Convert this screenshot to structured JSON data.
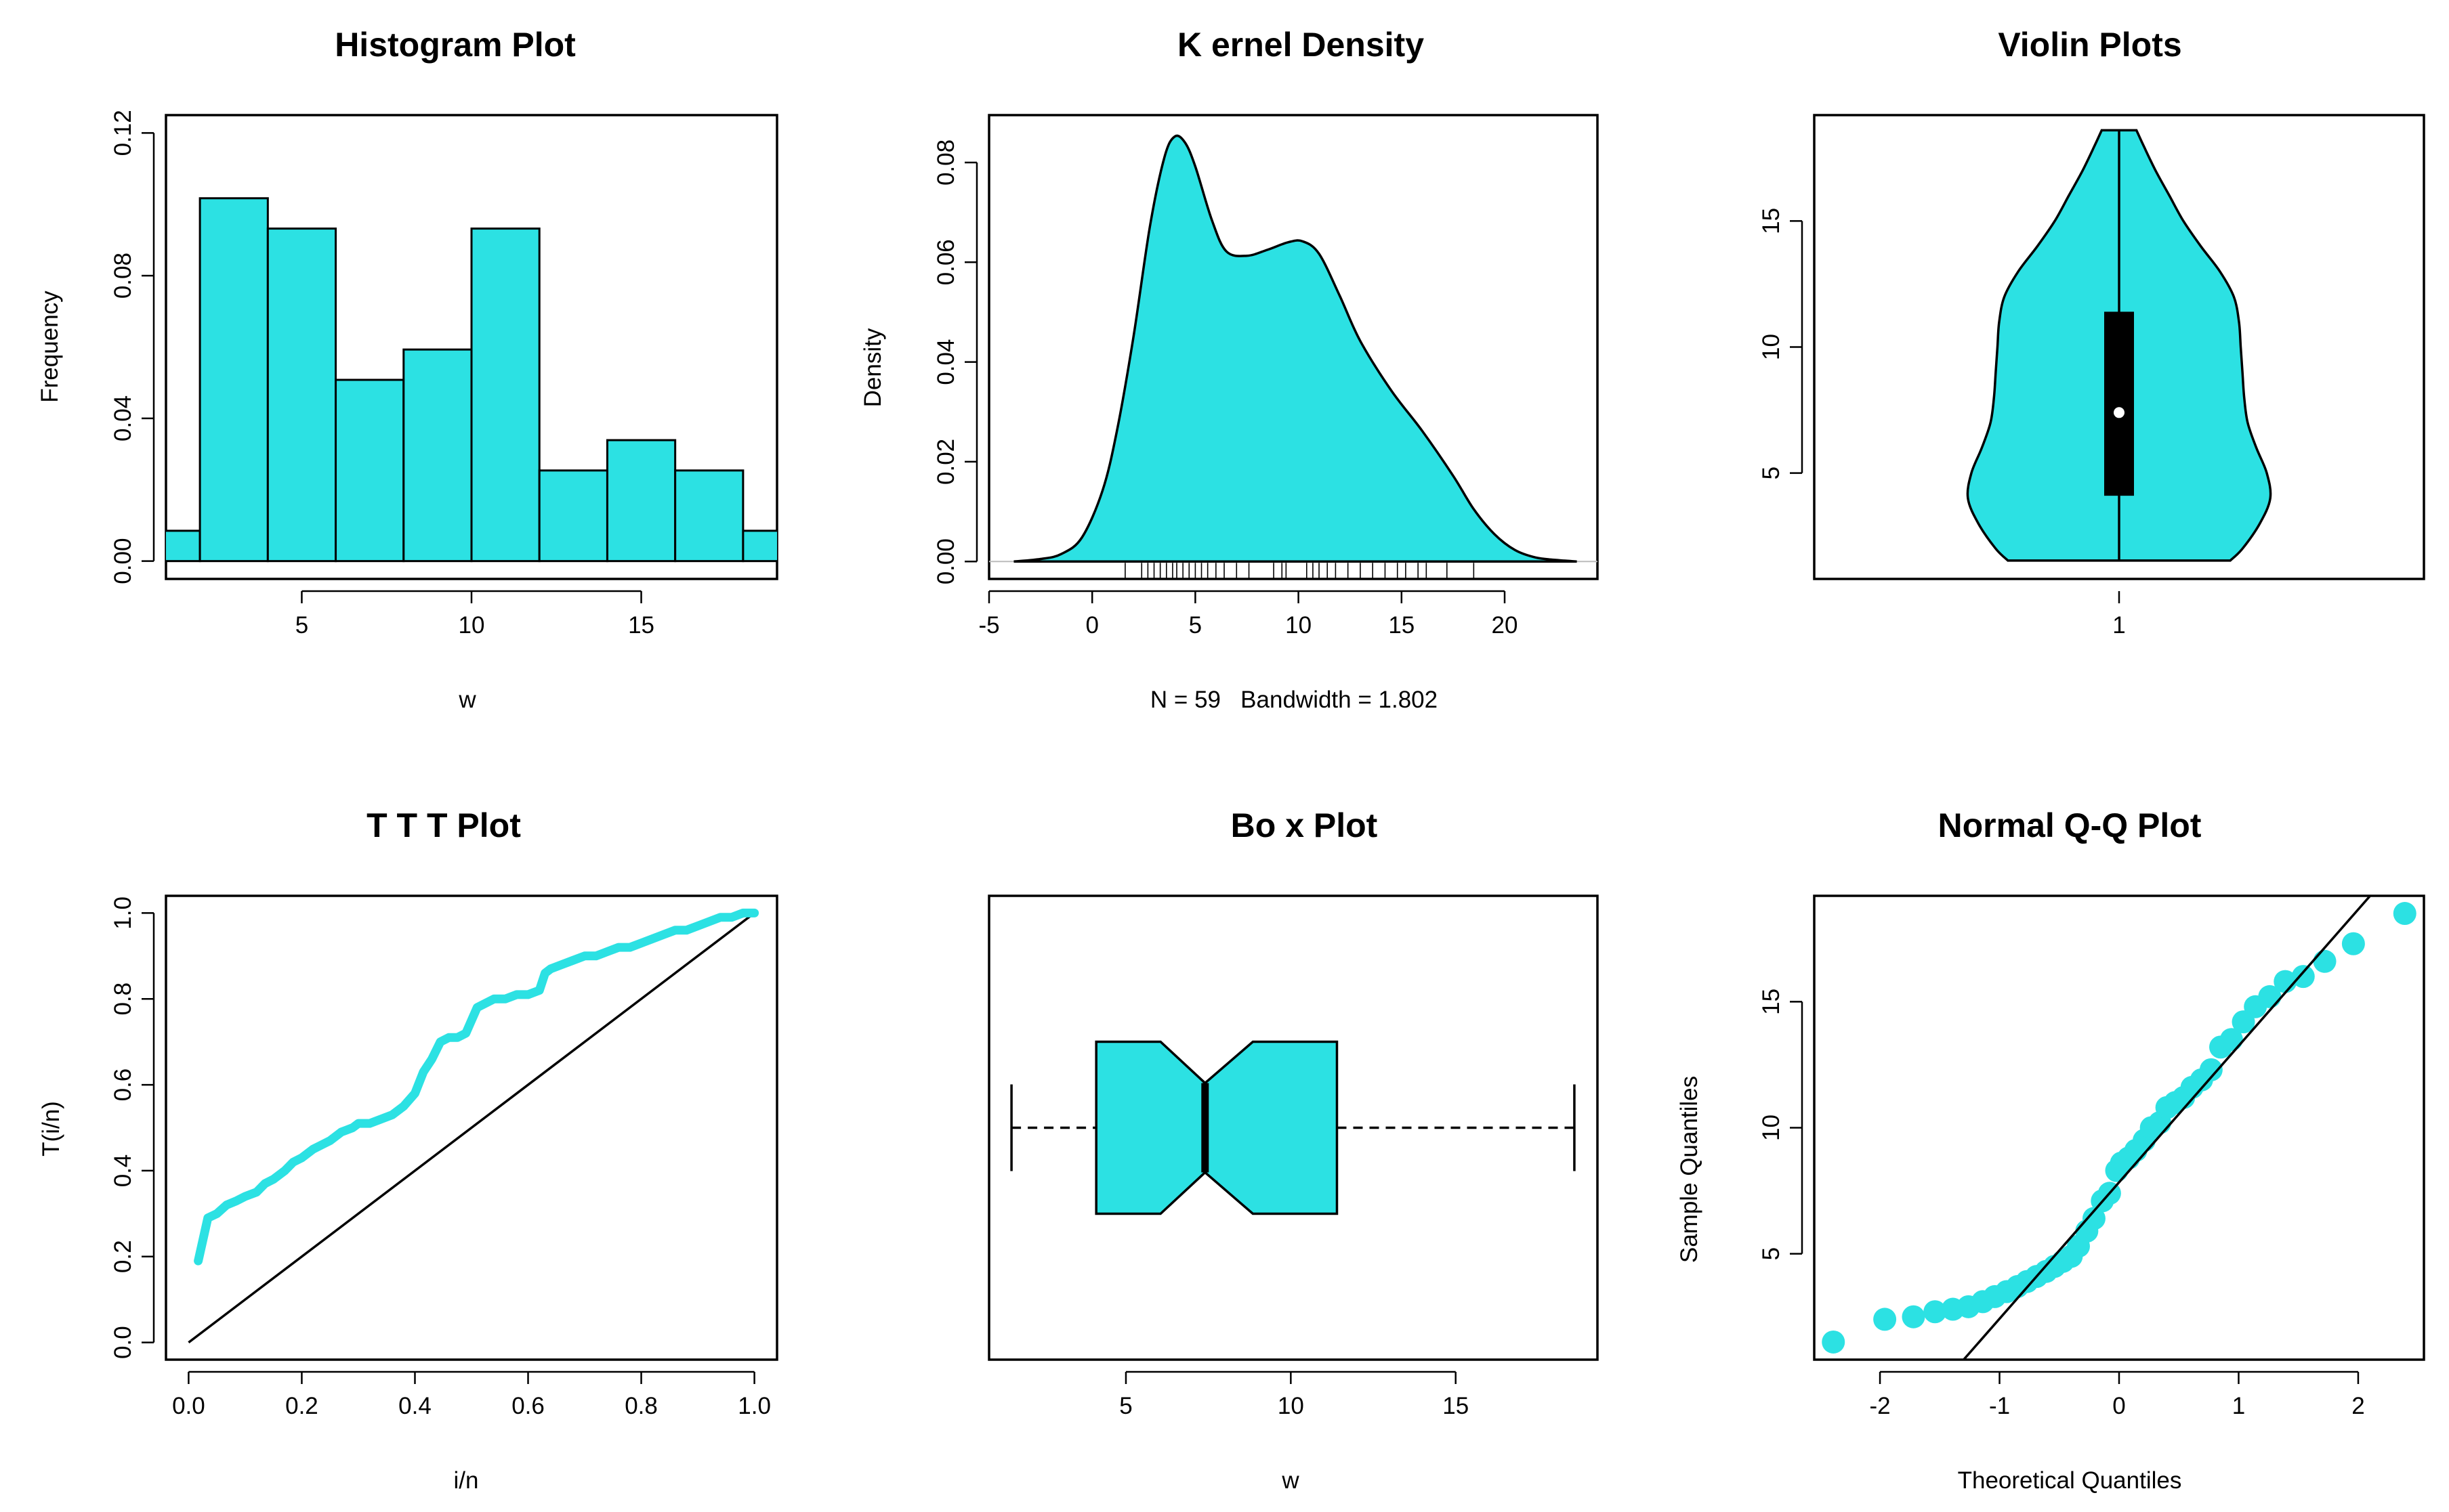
{
  "colors": {
    "fill": "#2ce1e3",
    "line": "#000000",
    "qq_point": "#2ce1e3"
  },
  "chart_data": [
    {
      "id": "hist",
      "type": "bar",
      "title": "Histogram Plot",
      "xlabel": "w",
      "ylabel": "Frequency",
      "xlim": [
        1.0,
        19.0
      ],
      "ylim": [
        -0.005,
        0.125
      ],
      "xticks": [
        5,
        10,
        15
      ],
      "yticks": [
        0.0,
        0.04,
        0.08,
        0.12
      ],
      "ytick_labels": [
        "0.00",
        "0.04",
        "0.08",
        "0.12"
      ],
      "bins": [
        [
          0,
          2,
          0.0085
        ],
        [
          2,
          4,
          0.1017
        ],
        [
          4,
          6,
          0.0932
        ],
        [
          6,
          8,
          0.0508
        ],
        [
          8,
          10,
          0.0593
        ],
        [
          10,
          12,
          0.0932
        ],
        [
          12,
          14,
          0.0254
        ],
        [
          14,
          16,
          0.0339
        ],
        [
          16,
          18,
          0.0254
        ],
        [
          18,
          20,
          0.0085
        ]
      ]
    },
    {
      "id": "kde",
      "type": "area",
      "title": "K ernel Density",
      "xlabel": "N = 59   Bandwidth = 1.802",
      "ylabel": "Density",
      "xlim": [
        -5,
        24.5
      ],
      "ylim": [
        -0.0035,
        0.0895
      ],
      "xticks": [
        -5,
        0,
        5,
        10,
        15,
        20
      ],
      "yticks": [
        0.0,
        0.02,
        0.04,
        0.06,
        0.08
      ],
      "ytick_labels": [
        "0.00",
        "0.02",
        "0.04",
        "0.06",
        "0.08"
      ],
      "x": [
        -3.8,
        -2.5,
        -1.5,
        -0.5,
        0.5,
        1.2,
        2.0,
        2.8,
        3.5,
        4.0,
        4.5,
        5.0,
        5.8,
        6.5,
        7.5,
        8.5,
        9.5,
        10.2,
        11.0,
        12.0,
        13.0,
        14.5,
        16.0,
        17.5,
        18.5,
        19.5,
        20.5,
        21.5,
        22.5,
        23.5
      ],
      "y": [
        0.0,
        0.0005,
        0.0015,
        0.0048,
        0.0142,
        0.0262,
        0.045,
        0.0672,
        0.081,
        0.0852,
        0.084,
        0.0792,
        0.0685,
        0.0622,
        0.0613,
        0.0625,
        0.064,
        0.0642,
        0.0617,
        0.0533,
        0.0442,
        0.0343,
        0.0262,
        0.0172,
        0.0105,
        0.0055,
        0.0023,
        0.0008,
        0.0003,
        0.0
      ],
      "rug": [
        1.6,
        2.4,
        2.7,
        3.0,
        3.3,
        3.6,
        3.9,
        4.1,
        4.4,
        4.7,
        5.0,
        5.3,
        5.6,
        6.0,
        6.4,
        7.0,
        7.6,
        8.8,
        9.2,
        9.4,
        10.4,
        10.7,
        11.0,
        11.4,
        11.8,
        12.4,
        13.0,
        13.6,
        14.2,
        14.8,
        15.2,
        15.8,
        16.2,
        17.2,
        18.5
      ]
    },
    {
      "id": "violin",
      "type": "violin",
      "title": "Violin Plots",
      "xlim": [
        0.5,
        1.5
      ],
      "ylim": [
        0.8,
        19.2
      ],
      "xticks": [
        1
      ],
      "yticks": [
        5,
        10,
        15
      ],
      "profile": [
        [
          1.53,
          0.64
        ],
        [
          2.0,
          0.71
        ],
        [
          3.0,
          0.81
        ],
        [
          4.0,
          0.87
        ],
        [
          5.0,
          0.85
        ],
        [
          6.0,
          0.79
        ],
        [
          7.0,
          0.74
        ],
        [
          8.0,
          0.72
        ],
        [
          9.0,
          0.71
        ],
        [
          10.0,
          0.7
        ],
        [
          11.0,
          0.69
        ],
        [
          12.0,
          0.66
        ],
        [
          13.0,
          0.58
        ],
        [
          14.0,
          0.47
        ],
        [
          15.0,
          0.37
        ],
        [
          16.0,
          0.29
        ],
        [
          17.0,
          0.21
        ],
        [
          18.0,
          0.14
        ],
        [
          18.6,
          0.1
        ]
      ],
      "box": {
        "q1": 4.1,
        "q3": 11.4,
        "median": 7.4,
        "min": 1.53,
        "max": 18.6
      }
    },
    {
      "id": "ttt",
      "type": "line",
      "title": "T T T Plot",
      "xlabel": "i/n",
      "ylabel": "T(i/n)",
      "xlim": [
        -0.04,
        1.04
      ],
      "ylim": [
        -0.04,
        1.04
      ],
      "xticks": [
        0.0,
        0.2,
        0.4,
        0.6,
        0.8,
        1.0
      ],
      "yticks": [
        0.0,
        0.2,
        0.4,
        0.6,
        0.8,
        1.0
      ],
      "tick_labels": [
        "0.0",
        "0.2",
        "0.4",
        "0.6",
        "0.8",
        "1.0"
      ],
      "x": [
        0.017,
        0.034,
        0.05,
        0.067,
        0.085,
        0.1,
        0.12,
        0.135,
        0.15,
        0.17,
        0.185,
        0.2,
        0.22,
        0.235,
        0.25,
        0.27,
        0.29,
        0.3,
        0.32,
        0.34,
        0.36,
        0.38,
        0.4,
        0.415,
        0.43,
        0.445,
        0.46,
        0.475,
        0.49,
        0.51,
        0.525,
        0.54,
        0.56,
        0.58,
        0.6,
        0.62,
        0.63,
        0.64,
        0.66,
        0.68,
        0.7,
        0.72,
        0.74,
        0.76,
        0.78,
        0.8,
        0.82,
        0.84,
        0.86,
        0.88,
        0.9,
        0.92,
        0.94,
        0.96,
        0.98,
        1.0
      ],
      "y": [
        0.19,
        0.29,
        0.3,
        0.32,
        0.33,
        0.34,
        0.35,
        0.37,
        0.38,
        0.4,
        0.42,
        0.43,
        0.45,
        0.46,
        0.47,
        0.49,
        0.5,
        0.51,
        0.51,
        0.52,
        0.53,
        0.55,
        0.58,
        0.63,
        0.66,
        0.7,
        0.71,
        0.71,
        0.72,
        0.78,
        0.79,
        0.8,
        0.8,
        0.81,
        0.81,
        0.82,
        0.86,
        0.87,
        0.88,
        0.89,
        0.9,
        0.9,
        0.91,
        0.92,
        0.92,
        0.93,
        0.94,
        0.95,
        0.96,
        0.96,
        0.97,
        0.98,
        0.99,
        0.99,
        1.0,
        1.0
      ],
      "reference": [
        [
          0,
          0
        ],
        [
          1,
          1
        ]
      ]
    },
    {
      "id": "box",
      "type": "box",
      "title": "Bo x Plot",
      "xlabel": "w",
      "xlim": [
        0.85,
        19.3
      ],
      "xticks": [
        5,
        10,
        15
      ],
      "stats": {
        "min": 1.53,
        "q1": 4.1,
        "notch_lo": 6.05,
        "median": 7.4,
        "notch_hi": 8.85,
        "q3": 11.4,
        "max": 18.6
      }
    },
    {
      "id": "qq",
      "type": "scatter",
      "title": "Normal Q-Q Plot",
      "xlabel": "Theoretical Quantiles",
      "ylabel": "Sample Quantiles",
      "xlim": [
        -2.55,
        2.55
      ],
      "ylim": [
        0.8,
        19.2
      ],
      "xticks": [
        -2,
        -1,
        0,
        1,
        2
      ],
      "yticks": [
        5,
        10,
        15
      ],
      "x": [
        -2.39,
        -1.96,
        -1.72,
        -1.54,
        -1.39,
        -1.26,
        -1.14,
        -1.04,
        -0.94,
        -0.85,
        -0.77,
        -0.69,
        -0.61,
        -0.54,
        -0.47,
        -0.4,
        -0.34,
        -0.27,
        -0.21,
        -0.14,
        -0.08,
        -0.02,
        0.02,
        0.08,
        0.14,
        0.21,
        0.27,
        0.34,
        0.4,
        0.47,
        0.54,
        0.61,
        0.69,
        0.77,
        0.85,
        0.94,
        1.04,
        1.14,
        1.26,
        1.39,
        1.54,
        1.72,
        1.96,
        2.39
      ],
      "y": [
        1.5,
        2.4,
        2.5,
        2.7,
        2.8,
        2.9,
        3.1,
        3.3,
        3.5,
        3.7,
        3.9,
        4.1,
        4.3,
        4.5,
        4.7,
        4.9,
        5.3,
        5.9,
        6.4,
        7.1,
        7.4,
        8.3,
        8.6,
        8.8,
        9.1,
        9.5,
        10.0,
        10.2,
        10.8,
        11.0,
        11.2,
        11.6,
        11.9,
        12.3,
        13.2,
        13.5,
        14.2,
        14.8,
        15.2,
        15.8,
        16.0,
        16.6,
        17.3,
        18.5
      ],
      "reference": [
        [
          -1.3,
          0.8
        ],
        [
          2.1,
          19.2
        ]
      ]
    }
  ]
}
